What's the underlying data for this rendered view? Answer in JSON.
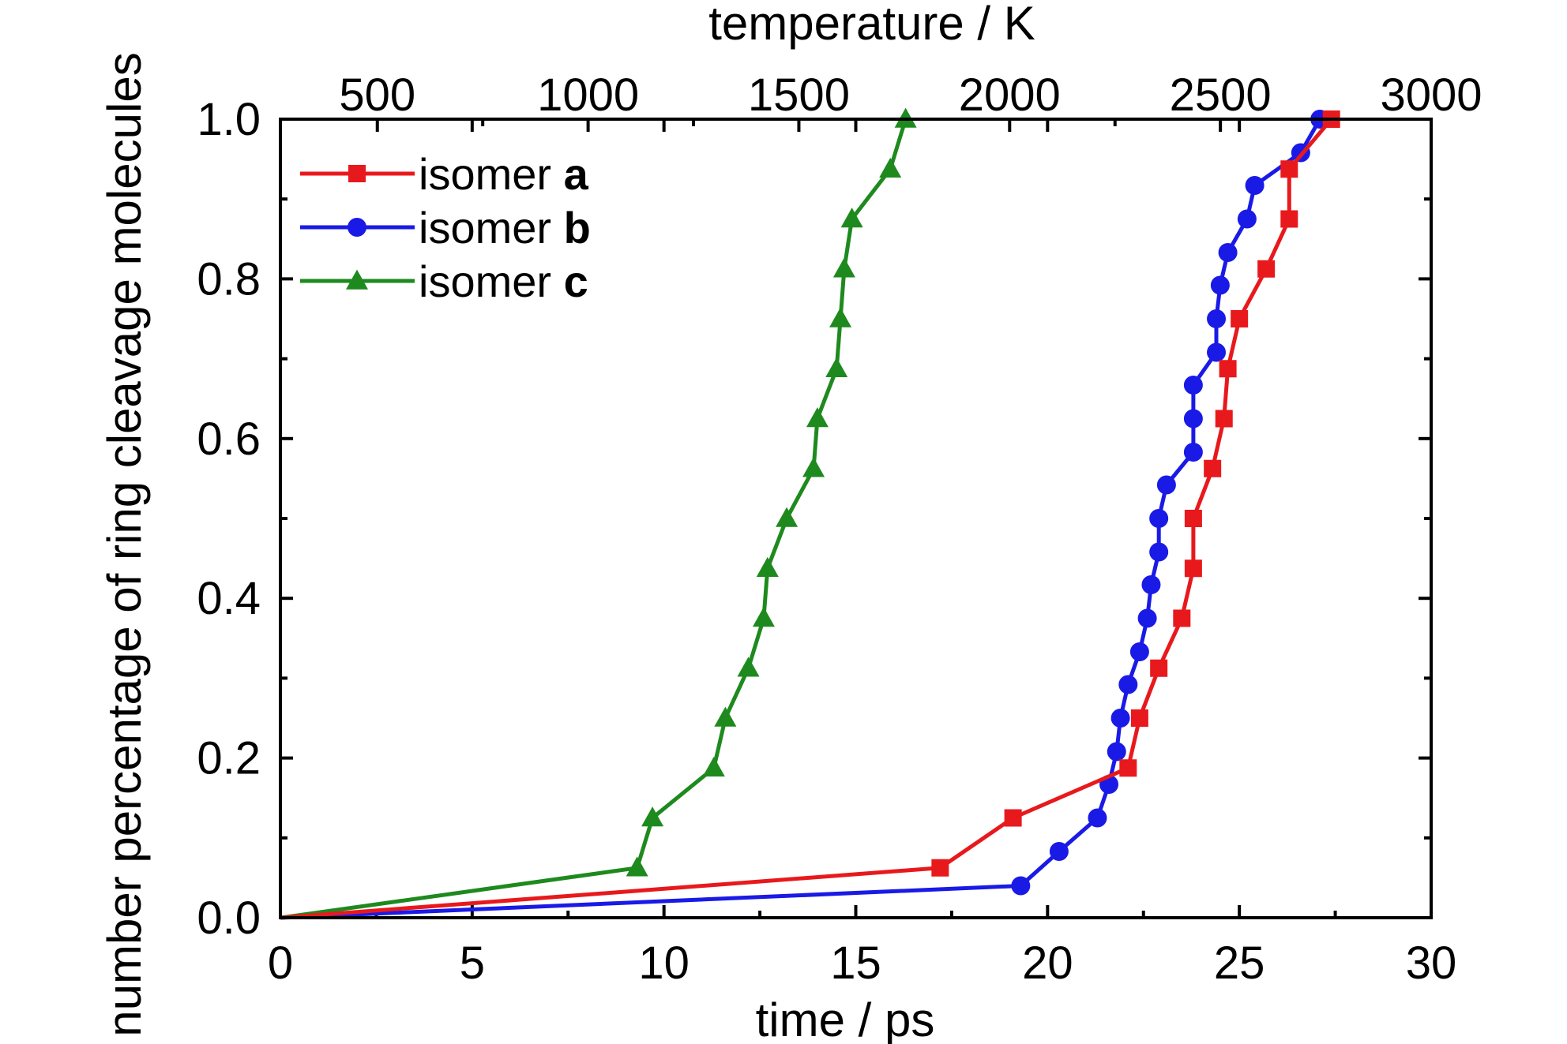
{
  "chart_data": {
    "type": "line",
    "xlabel": "time / ps",
    "ylabel": "number percentage of ring cleavage molecules",
    "x2label": "temperature / K",
    "xlim": [
      0,
      30
    ],
    "ylim": [
      0,
      1.0
    ],
    "x2lim": [
      270,
      3000
    ],
    "xticks": [
      "0",
      "5",
      "10",
      "15",
      "20",
      "25",
      "30"
    ],
    "yticks": [
      "0.0",
      "0.2",
      "0.4",
      "0.6",
      "0.8",
      "1.0"
    ],
    "x2ticks": [
      "500",
      "1000",
      "1500",
      "2000",
      "2500",
      "3000"
    ],
    "legend_position": "top-left",
    "series": [
      {
        "name": "isomer",
        "name_bold": "a",
        "color": "#e8191c",
        "marker": "square",
        "points": [
          [
            0,
            0
          ],
          [
            17.2,
            0.0625
          ],
          [
            19.1,
            0.125
          ],
          [
            22.1,
            0.1875
          ],
          [
            22.4,
            0.25
          ],
          [
            22.9,
            0.3125
          ],
          [
            23.5,
            0.375
          ],
          [
            23.8,
            0.4375
          ],
          [
            23.8,
            0.5
          ],
          [
            24.3,
            0.5625
          ],
          [
            24.6,
            0.625
          ],
          [
            24.7,
            0.6875
          ],
          [
            25.0,
            0.75
          ],
          [
            25.7,
            0.8125
          ],
          [
            26.3,
            0.875
          ],
          [
            26.3,
            0.9375
          ],
          [
            27.4,
            1.0
          ]
        ]
      },
      {
        "name": "isomer",
        "name_bold": "b",
        "color": "#1a1ae6",
        "marker": "circle",
        "points": [
          [
            0,
            0
          ],
          [
            19.3,
            0.04
          ],
          [
            20.3,
            0.083
          ],
          [
            21.3,
            0.125
          ],
          [
            21.6,
            0.167
          ],
          [
            21.8,
            0.208
          ],
          [
            21.9,
            0.25
          ],
          [
            22.1,
            0.292
          ],
          [
            22.4,
            0.333
          ],
          [
            22.6,
            0.375
          ],
          [
            22.7,
            0.417
          ],
          [
            22.9,
            0.458
          ],
          [
            22.9,
            0.5
          ],
          [
            23.1,
            0.542
          ],
          [
            23.8,
            0.583
          ],
          [
            23.8,
            0.625
          ],
          [
            23.8,
            0.667
          ],
          [
            24.4,
            0.708
          ],
          [
            24.4,
            0.75
          ],
          [
            24.5,
            0.792
          ],
          [
            24.7,
            0.833
          ],
          [
            25.2,
            0.875
          ],
          [
            25.4,
            0.917
          ],
          [
            26.6,
            0.958
          ],
          [
            27.1,
            1.0
          ]
        ]
      },
      {
        "name": "isomer",
        "name_bold": "c",
        "color": "#1e8a1e",
        "marker": "triangle",
        "points": [
          [
            0,
            0
          ],
          [
            9.3,
            0.0625
          ],
          [
            9.7,
            0.125
          ],
          [
            11.3,
            0.1875
          ],
          [
            11.6,
            0.25
          ],
          [
            12.2,
            0.3125
          ],
          [
            12.6,
            0.375
          ],
          [
            12.7,
            0.4375
          ],
          [
            13.2,
            0.5
          ],
          [
            13.9,
            0.5625
          ],
          [
            14.0,
            0.625
          ],
          [
            14.5,
            0.6875
          ],
          [
            14.6,
            0.75
          ],
          [
            14.7,
            0.8125
          ],
          [
            14.9,
            0.875
          ],
          [
            15.9,
            0.9375
          ],
          [
            16.3,
            1.0
          ]
        ]
      }
    ]
  }
}
